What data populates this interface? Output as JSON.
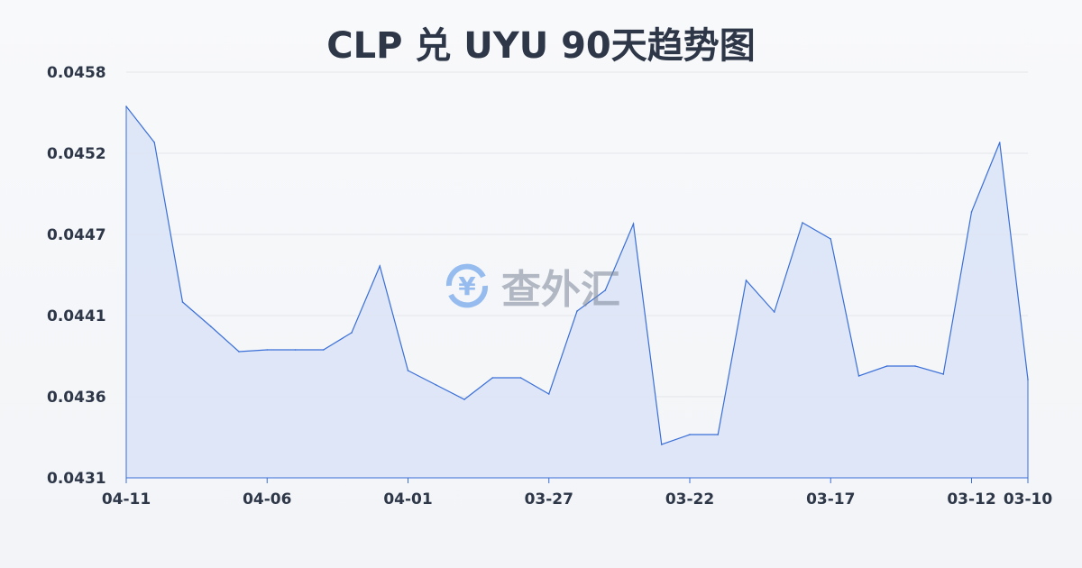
{
  "chart_data": {
    "type": "area",
    "title": "CLP 兑 UYU 90天趋势图",
    "xlabel": "",
    "ylabel": "",
    "x": [
      "04-11",
      "04-10",
      "04-09",
      "04-08",
      "04-07",
      "04-06",
      "04-05",
      "04-04",
      "04-03",
      "04-02",
      "04-01",
      "03-31",
      "03-30",
      "03-29",
      "03-28",
      "03-27",
      "03-26",
      "03-25",
      "03-24",
      "03-23",
      "03-22",
      "03-21",
      "03-20",
      "03-19",
      "03-18",
      "03-17",
      "03-16",
      "03-15",
      "03-14",
      "03-13",
      "03-12",
      "03-11",
      "03-10"
    ],
    "values": [
      0.045572,
      0.045332,
      0.04427,
      0.044108,
      0.04394,
      0.043952,
      0.043952,
      0.043952,
      0.044066,
      0.04451,
      0.043814,
      0.043718,
      0.043622,
      0.043766,
      0.043766,
      0.043658,
      0.04421,
      0.044348,
      0.04479,
      0.043322,
      0.043388,
      0.043388,
      0.044414,
      0.044204,
      0.044798,
      0.04469,
      0.043778,
      0.043844,
      0.043844,
      0.04379,
      0.04487,
      0.045332,
      0.043754
    ],
    "x_tick_labels": [
      "04-11",
      "04-06",
      "04-01",
      "03-27",
      "03-22",
      "03-17",
      "03-12",
      "03-10"
    ],
    "y_tick_labels": [
      "0.0458",
      "0.0452",
      "0.0447",
      "0.0441",
      "0.0436",
      "0.0431"
    ],
    "ylim": [
      0.0431,
      0.0458
    ],
    "grid": true,
    "line_color": "#3a6fd8",
    "fill_color": "#dbe4f6"
  },
  "watermark": {
    "text": "查外汇",
    "icon": "yen-exchange-icon"
  }
}
